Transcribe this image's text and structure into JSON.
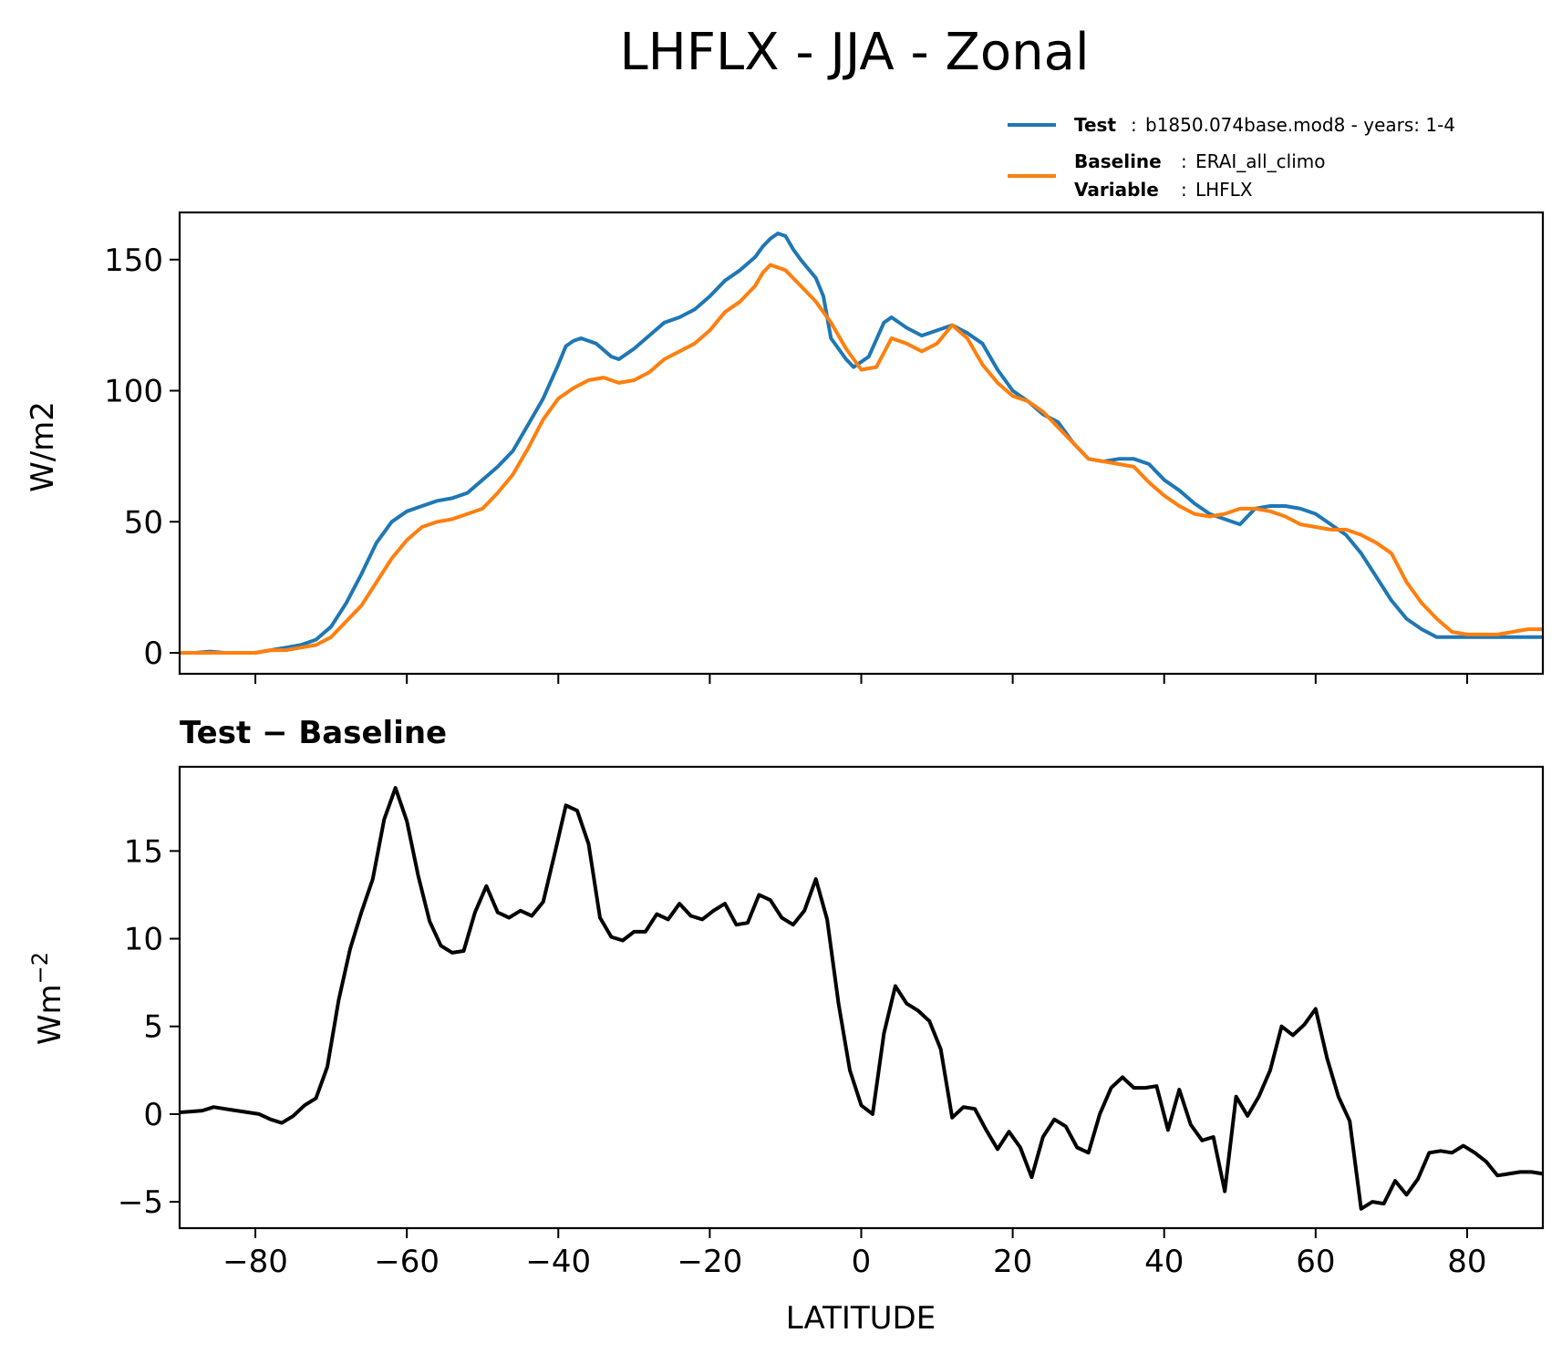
{
  "chart_data": {
    "title": "LHFLX - JJA - Zonal",
    "type": "line",
    "legend": {
      "placement": "top-right",
      "entries": [
        {
          "key": "Test",
          "sep": ":",
          "text": "b1850.074base.mod8 - years: 1-4",
          "color": "#1f77b4"
        },
        {
          "key": "Baseline",
          "sep": ":",
          "text": "ERAI_all_climo",
          "color": "#ff7f0e"
        },
        {
          "key": "Variable",
          "sep": ":",
          "text": "LHFLX",
          "color": null
        }
      ]
    },
    "xlabel": "LATITUDE",
    "xlim": [
      -90,
      90
    ],
    "xticks": [
      -80,
      -60,
      -40,
      -20,
      0,
      20,
      40,
      60,
      80
    ],
    "xtick_labels": [
      "−80",
      "−60",
      "−40",
      "−20",
      "0",
      "20",
      "40",
      "60",
      "80"
    ],
    "top": {
      "ylabel": "W/m2",
      "ylim": [
        -8,
        168
      ],
      "yticks": [
        0,
        50,
        100,
        150
      ],
      "ytick_labels": [
        "0",
        "50",
        "100",
        "150"
      ],
      "series": [
        {
          "name": "Test",
          "color": "#1f77b4",
          "x": [
            -90,
            -88,
            -86,
            -84,
            -82,
            -80,
            -78,
            -76,
            -74,
            -72,
            -70,
            -68,
            -66,
            -64,
            -62,
            -60,
            -58,
            -56,
            -54,
            -52,
            -50,
            -48,
            -46,
            -44,
            -42,
            -40,
            -39,
            -38,
            -37,
            -36,
            -35,
            -33,
            -32,
            -30,
            -28,
            -26,
            -24,
            -22,
            -20,
            -18,
            -16,
            -14,
            -13,
            -12,
            -11,
            -10,
            -9,
            -8,
            -6,
            -5,
            -4,
            -2,
            -1,
            1,
            3,
            4,
            6,
            8,
            10,
            11,
            12,
            14,
            16,
            18,
            20,
            22,
            24,
            26,
            28,
            30,
            32,
            34,
            36,
            38,
            40,
            42,
            44,
            46,
            48,
            50,
            52,
            54,
            56,
            58,
            60,
            62,
            64,
            66,
            68,
            70,
            72,
            74,
            76,
            78,
            80,
            82,
            84,
            86,
            88,
            90
          ],
          "y": [
            0,
            0,
            0.5,
            0,
            0,
            0,
            1,
            2,
            3,
            5,
            10,
            19,
            30,
            42,
            50,
            54,
            56,
            58,
            59,
            61,
            66,
            71,
            77,
            87,
            97,
            110,
            117,
            119,
            120,
            119,
            118,
            113,
            112,
            116,
            121,
            126,
            128,
            131,
            136,
            142,
            146,
            151,
            155,
            158,
            160,
            159,
            154,
            150,
            143,
            136,
            120,
            112,
            109,
            113,
            126,
            128,
            124,
            121,
            123,
            124,
            125,
            122,
            118,
            108,
            100,
            96,
            91,
            88,
            80,
            74,
            73,
            74,
            74,
            72,
            66,
            62,
            57,
            53,
            51,
            49,
            55,
            56,
            56,
            55,
            53,
            49,
            45,
            38,
            29,
            20,
            13,
            9,
            6,
            6,
            6,
            6,
            6,
            6,
            6,
            6
          ],
          "y_note_removed": true
        },
        {
          "name": "Baseline",
          "color": "#ff7f0e",
          "x": [
            -90,
            -88,
            -86,
            -84,
            -82,
            -80,
            -78,
            -76,
            -74,
            -72,
            -70,
            -68,
            -66,
            -64,
            -62,
            -60,
            -58,
            -56,
            -54,
            -52,
            -50,
            -48,
            -46,
            -44,
            -42,
            -40,
            -38,
            -36,
            -34,
            -32,
            -30,
            -28,
            -26,
            -24,
            -22,
            -20,
            -18,
            -16,
            -14,
            -13,
            -12,
            -10,
            -8,
            -6,
            -4,
            -2,
            0,
            2,
            4,
            6,
            8,
            10,
            12,
            14,
            16,
            18,
            20,
            22,
            24,
            26,
            28,
            30,
            32,
            34,
            36,
            38,
            40,
            42,
            44,
            46,
            48,
            50,
            52,
            54,
            56,
            58,
            60,
            62,
            64,
            66,
            68,
            70,
            72,
            74,
            76,
            78,
            80,
            82,
            84,
            86,
            88,
            90
          ],
          "y": [
            0,
            0,
            0,
            0,
            0,
            0,
            1,
            1,
            2,
            3,
            6,
            12,
            18,
            27,
            36,
            43,
            48,
            50,
            51,
            53,
            55,
            61,
            68,
            78,
            89,
            97,
            101,
            104,
            105,
            103,
            104,
            107,
            112,
            115,
            118,
            123,
            130,
            134,
            140,
            145,
            148,
            146,
            140,
            134,
            126,
            116,
            108,
            109,
            120,
            118,
            115,
            118,
            125,
            120,
            110,
            103,
            98,
            96,
            92,
            86,
            80,
            74,
            73,
            72,
            71,
            65,
            60,
            56,
            53,
            52,
            53,
            55,
            55,
            54,
            52,
            49,
            48,
            47,
            47,
            45,
            42,
            38,
            27,
            19,
            13,
            8,
            7,
            7,
            7,
            8,
            9,
            9
          ],
          "y_note_removed": true
        }
      ]
    },
    "bottom": {
      "subtitle": "Test − Baseline",
      "ylabel": "Wm",
      "ylabel_sup": "−2",
      "ylim": [
        -6.5,
        19.8
      ],
      "yticks": [
        -5,
        0,
        5,
        10,
        15
      ],
      "ytick_labels": [
        "−5",
        "0",
        "5",
        "10",
        "15"
      ],
      "series": [
        {
          "name": "",
          "color": "#000000",
          "x": [
            -90,
            -88.5,
            -87,
            -85.5,
            -84,
            -82.5,
            -81,
            -79.5,
            -78,
            -76.5,
            -75,
            -73.5,
            -72,
            -70.5,
            -69,
            -67.5,
            -66,
            -64.5,
            -63,
            -61.5,
            -60,
            -58.5,
            -57,
            -55.5,
            -54,
            -52.5,
            -51,
            -49.5,
            -48,
            -46.5,
            -45,
            -43.5,
            -42,
            -40.5,
            -39,
            -37.5,
            -36,
            -34.5,
            -33,
            -31.5,
            -30,
            -28.5,
            -27,
            -25.5,
            -24,
            -22.5,
            -21,
            -19.5,
            -18,
            -16.5,
            -15,
            -13.5,
            -12,
            -10.5,
            -9,
            -7.5,
            -6,
            -4.5,
            -3,
            -1.5,
            0,
            1.5,
            3,
            4.5,
            6,
            7.5,
            9,
            10.5,
            12,
            13.5,
            15,
            16.5,
            18,
            19.5,
            21,
            22.5,
            24,
            25.5,
            27,
            28.5,
            30,
            31.5,
            33,
            34.5,
            36,
            37.5,
            39,
            40.5,
            42,
            43.5,
            45,
            46.5,
            48,
            49.5,
            51,
            52.5,
            54,
            55.5,
            57,
            58.5,
            60,
            61.5,
            63,
            64.5,
            66,
            67.5,
            69,
            70.5,
            72,
            73.5,
            75,
            76.5,
            78,
            79.5,
            81,
            82.5,
            84,
            85.5,
            87,
            88.5,
            90
          ],
          "y": [
            0.1,
            0.15,
            0.2,
            0.4,
            0.3,
            0.2,
            0.1,
            0,
            -0.3,
            -0.5,
            -0.1,
            0.5,
            0.9,
            2.7,
            6.5,
            9.4,
            11.5,
            13.4,
            16.8,
            18.6,
            16.7,
            13.6,
            11,
            9.6,
            9.2,
            9.3,
            11.5,
            13,
            11.5,
            11.2,
            11.6,
            11.3,
            12.1,
            14.8,
            17.6,
            17.3,
            15.4,
            11.2,
            10.1,
            9.9,
            10.4,
            10.4,
            11.4,
            11.1,
            12,
            11.3,
            11.1,
            11.6,
            12,
            10.8,
            10.9,
            12.5,
            12.2,
            11.2,
            10.8,
            11.6,
            13.4,
            11.1,
            6.3,
            2.5,
            0.5,
            0,
            4.6,
            7.3,
            6.3,
            5.9,
            5.3,
            3.7,
            -0.2,
            0.4,
            0.3,
            -0.9,
            -2,
            -1,
            -1.9,
            -3.6,
            -1.3,
            -0.3,
            -0.7,
            -1.9,
            -2.2,
            0,
            1.5,
            2.1,
            1.5,
            1.5,
            1.6,
            -0.9,
            1.4,
            -0.6,
            -1.5,
            -1.3,
            -4.4,
            1,
            -0.1,
            1,
            2.5,
            5,
            4.5,
            5.1,
            6,
            3.2,
            1,
            -0.4,
            -5.4,
            -5,
            -5.1,
            -3.8,
            -4.6,
            -3.7,
            -2.2,
            -2.1,
            -2.2,
            -1.8,
            -2.2,
            -2.7,
            -3.5,
            -3.4,
            -3.3,
            -3.3,
            -3.4
          ],
          "y_note_removed": true
        }
      ]
    }
  }
}
